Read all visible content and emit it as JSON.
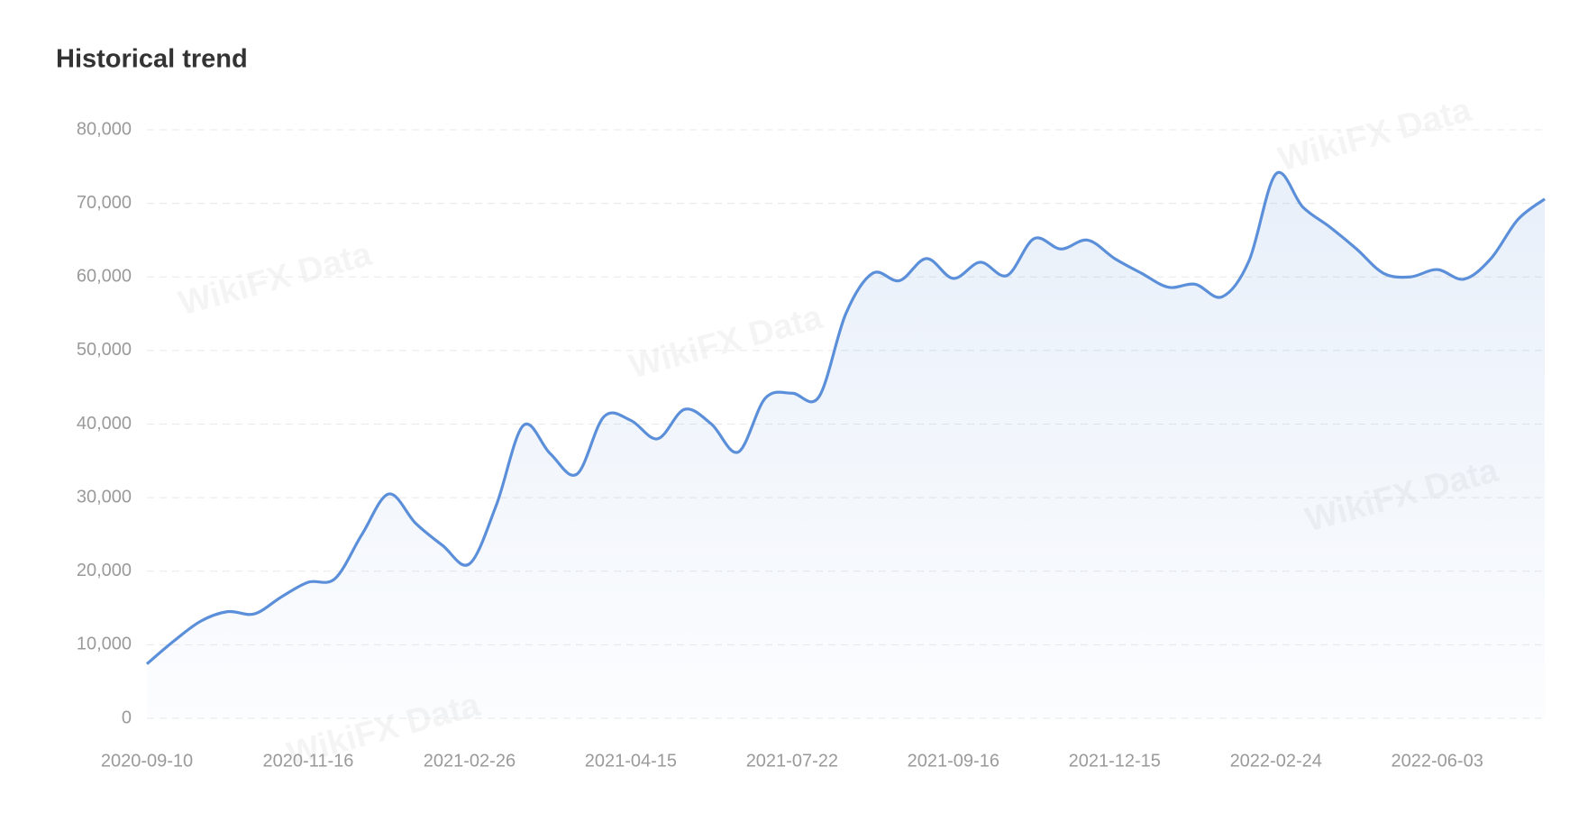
{
  "chart_data": {
    "type": "area-line",
    "title": "Historical trend",
    "watermark": "WikiFX Data",
    "categories": [
      "2020-09-10",
      null,
      null,
      null,
      null,
      null,
      "2020-11-16",
      null,
      null,
      null,
      null,
      null,
      "2021-02-26",
      null,
      null,
      null,
      null,
      null,
      "2021-04-15",
      null,
      null,
      null,
      null,
      null,
      "2021-07-22",
      null,
      null,
      null,
      null,
      null,
      "2021-09-16",
      null,
      null,
      null,
      null,
      null,
      "2021-12-15",
      null,
      null,
      null,
      null,
      null,
      "2022-02-24",
      null,
      null,
      null,
      null,
      null,
      "2022-06-03",
      null,
      null,
      null,
      null
    ],
    "values": [
      7400,
      10500,
      13200,
      14500,
      14200,
      16500,
      18500,
      19000,
      25000,
      30500,
      26500,
      23500,
      21000,
      29000,
      39800,
      36000,
      33200,
      41000,
      40500,
      38000,
      42000,
      40000,
      36200,
      43500,
      44200,
      43700,
      55000,
      60500,
      59500,
      62500,
      59800,
      62000,
      60200,
      65200,
      63800,
      65000,
      62500,
      60500,
      58600,
      59000,
      57300,
      62200,
      74000,
      69500,
      66800,
      63800,
      60500,
      60000,
      61000,
      59700,
      62500,
      67800,
      70600
    ],
    "color": "#5b8fd9",
    "ylim": [
      0,
      80000
    ],
    "yticks": [
      {
        "value": 0,
        "label": "0"
      },
      {
        "value": 10000,
        "label": "10,000"
      },
      {
        "value": 20000,
        "label": "20,000"
      },
      {
        "value": 30000,
        "label": "30,000"
      },
      {
        "value": 40000,
        "label": "40,000"
      },
      {
        "value": 50000,
        "label": "50,000"
      },
      {
        "value": 60000,
        "label": "60,000"
      },
      {
        "value": 70000,
        "label": "70,000"
      },
      {
        "value": 80000,
        "label": "80,000"
      }
    ],
    "grid": true
  }
}
